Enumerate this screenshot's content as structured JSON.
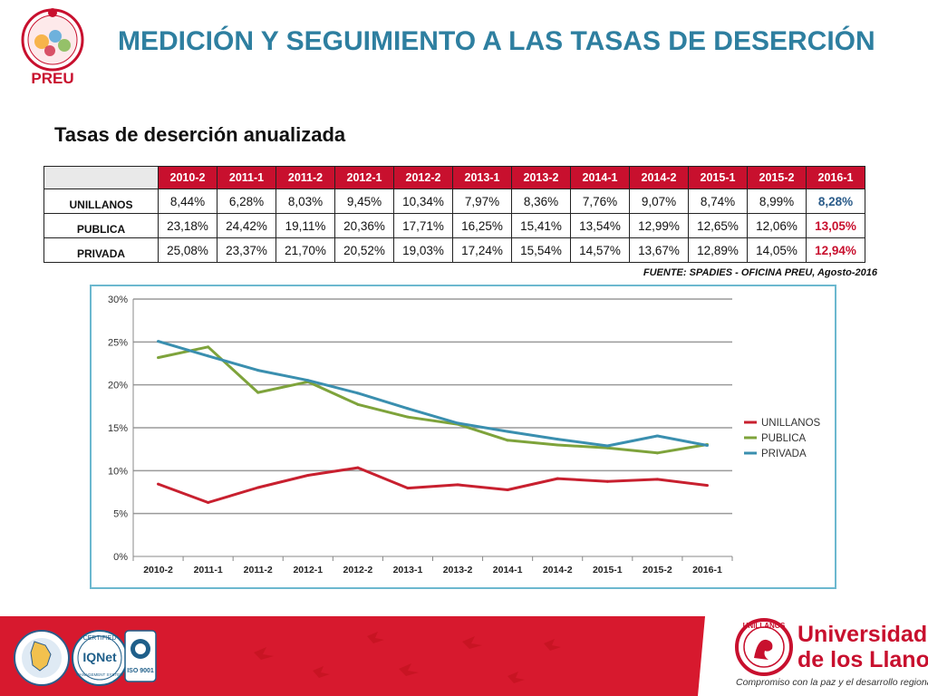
{
  "header": {
    "title": "MEDICIÓN Y SEGUIMIENTO A LAS TASAS DE DESERCIÓN",
    "logo_text": "PREU",
    "logo_ring_text": "PROGRAMA DE RETENCIÓN ESTUDIANTIL UNILLANOS"
  },
  "section": {
    "subtitle": "Tasas de deserción anualizada",
    "source": "FUENTE: SPADIES - OFICINA PREU, Agosto-2016"
  },
  "table": {
    "periods": [
      "2010-2",
      "2011-1",
      "2011-2",
      "2012-1",
      "2012-2",
      "2013-1",
      "2013-2",
      "2014-1",
      "2014-2",
      "2015-1",
      "2015-2",
      "2016-1"
    ],
    "rows": [
      {
        "label": "UNILLANOS",
        "values": [
          "8,44%",
          "6,28%",
          "8,03%",
          "9,45%",
          "10,34%",
          "7,97%",
          "8,36%",
          "7,76%",
          "9,07%",
          "8,74%",
          "8,99%",
          "8,28%"
        ]
      },
      {
        "label": "PUBLICA",
        "values": [
          "23,18%",
          "24,42%",
          "19,11%",
          "20,36%",
          "17,71%",
          "16,25%",
          "15,41%",
          "13,54%",
          "12,99%",
          "12,65%",
          "12,06%",
          "13,05%"
        ]
      },
      {
        "label": "PRIVADA",
        "values": [
          "25,08%",
          "23,37%",
          "21,70%",
          "20,52%",
          "19,03%",
          "17,24%",
          "15,54%",
          "14,57%",
          "13,67%",
          "12,89%",
          "14,05%",
          "12,94%"
        ]
      }
    ],
    "header_color": "#C8102E",
    "highlight_colors": [
      "#2B5C8A",
      "#C8102E",
      "#C8102E"
    ]
  },
  "chart_data": {
    "type": "line",
    "categories": [
      "2010-2",
      "2011-1",
      "2011-2",
      "2012-1",
      "2012-2",
      "2013-1",
      "2013-2",
      "2014-1",
      "2014-2",
      "2015-1",
      "2015-2",
      "2016-1"
    ],
    "series": [
      {
        "name": "UNILLANOS",
        "color": "#C8202F",
        "values": [
          8.44,
          6.28,
          8.03,
          9.45,
          10.34,
          7.97,
          8.36,
          7.76,
          9.07,
          8.74,
          8.99,
          8.28
        ]
      },
      {
        "name": "PUBLICA",
        "color": "#7EA33B",
        "values": [
          23.18,
          24.42,
          19.11,
          20.36,
          17.71,
          16.25,
          15.41,
          13.54,
          12.99,
          12.65,
          12.06,
          13.05
        ]
      },
      {
        "name": "PRIVADA",
        "color": "#3A8FAF",
        "values": [
          25.08,
          23.37,
          21.7,
          20.52,
          19.03,
          17.24,
          15.54,
          14.57,
          13.67,
          12.89,
          14.05,
          12.94
        ]
      }
    ],
    "y_ticks": [
      0,
      5,
      10,
      15,
      20,
      25,
      30
    ],
    "y_tick_labels": [
      "0%",
      "5%",
      "10%",
      "15%",
      "20%",
      "25%",
      "30%"
    ],
    "ylim": [
      0,
      30
    ],
    "grid": true,
    "legend_position": "right",
    "title": "",
    "xlabel": "",
    "ylabel": ""
  },
  "footer": {
    "university_line1": "Universidad",
    "university_line2": "de los Llanos",
    "tagline": "Compromiso con la paz y el desarrollo regional",
    "seal_text": "UNILLANOS",
    "cert_label": "IQNet",
    "cert_badge": "ISO 9001",
    "cert_ring": "CERTIFIED",
    "cert_sub": "MANAGEMENT SYSTEM",
    "bar_color": "#D7192E"
  }
}
